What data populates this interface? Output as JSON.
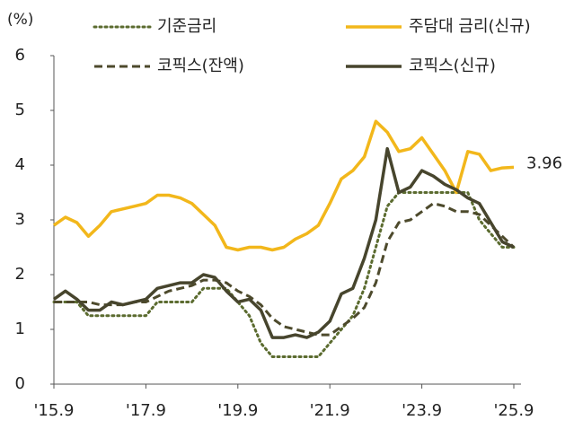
{
  "chart_data": {
    "type": "line",
    "y_label": "(%)",
    "categories": [
      "'15.9",
      null,
      null,
      null,
      null,
      null,
      null,
      null,
      "'17.9",
      null,
      null,
      null,
      null,
      null,
      null,
      null,
      "'19.9",
      null,
      null,
      null,
      null,
      null,
      null,
      null,
      "'21.9",
      null,
      null,
      null,
      null,
      null,
      null,
      null,
      "'23.9",
      null,
      null,
      null,
      null,
      null,
      null,
      null,
      "'25.9"
    ],
    "ylim": [
      0,
      6
    ],
    "yticks": [
      0,
      1,
      2,
      3,
      4,
      5,
      6
    ],
    "series": [
      {
        "name": "기준금리",
        "color": "#5b6b2f",
        "style": "dotted",
        "values": [
          1.5,
          1.5,
          1.5,
          1.25,
          1.25,
          1.25,
          1.25,
          1.25,
          1.25,
          1.5,
          1.5,
          1.5,
          1.5,
          1.75,
          1.75,
          1.75,
          1.5,
          1.25,
          0.75,
          0.5,
          0.5,
          0.5,
          0.5,
          0.5,
          0.75,
          1.0,
          1.25,
          1.75,
          2.5,
          3.25,
          3.5,
          3.5,
          3.5,
          3.5,
          3.5,
          3.5,
          3.5,
          3.0,
          2.75,
          2.5,
          2.5
        ]
      },
      {
        "name": "주담대 금리(신규)",
        "color": "#f2b71b",
        "style": "solid",
        "values": [
          2.9,
          3.05,
          2.95,
          2.7,
          2.9,
          3.15,
          3.2,
          3.25,
          3.3,
          3.45,
          3.45,
          3.4,
          3.3,
          3.1,
          2.9,
          2.5,
          2.45,
          2.5,
          2.5,
          2.45,
          2.5,
          2.65,
          2.75,
          2.9,
          3.3,
          3.75,
          3.9,
          4.15,
          4.8,
          4.6,
          4.25,
          4.3,
          4.5,
          4.2,
          3.9,
          3.5,
          4.25,
          4.2,
          3.9,
          3.95,
          3.96
        ]
      },
      {
        "name": "코픽스(잔액)",
        "color": "#4d4a2c",
        "style": "dashed",
        "values": [
          1.5,
          1.5,
          1.5,
          1.5,
          1.45,
          1.45,
          1.45,
          1.5,
          1.5,
          1.6,
          1.7,
          1.75,
          1.8,
          1.9,
          1.9,
          1.85,
          1.7,
          1.6,
          1.45,
          1.2,
          1.05,
          1.0,
          0.95,
          0.9,
          0.9,
          1.05,
          1.2,
          1.4,
          1.85,
          2.6,
          2.95,
          3.0,
          3.15,
          3.3,
          3.25,
          3.15,
          3.15,
          3.1,
          2.9,
          2.7,
          2.5
        ]
      },
      {
        "name": "코픽스(신규)",
        "color": "#47452d",
        "style": "solid",
        "values": [
          1.55,
          1.7,
          1.55,
          1.35,
          1.35,
          1.5,
          1.45,
          1.5,
          1.55,
          1.75,
          1.8,
          1.85,
          1.85,
          2.0,
          1.95,
          1.7,
          1.5,
          1.55,
          1.35,
          0.85,
          0.85,
          0.9,
          0.85,
          0.95,
          1.15,
          1.65,
          1.75,
          2.3,
          3.0,
          4.3,
          3.5,
          3.6,
          3.9,
          3.8,
          3.65,
          3.55,
          3.4,
          3.3,
          2.95,
          2.6,
          2.5
        ]
      }
    ],
    "end_label_series": 1
  }
}
